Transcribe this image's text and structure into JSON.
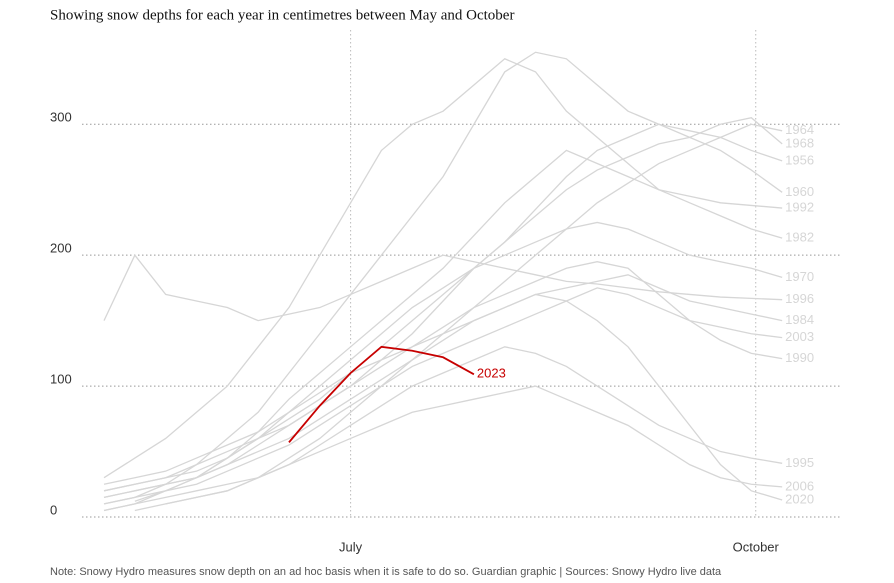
{
  "chart_data": {
    "type": "line",
    "subtitle": "Showing snow depths for each year in centimetres between May and October",
    "note": "Note: Snowy Hydro measures snow depth on an ad hoc basis when it is safe to do so. Guardian graphic | Sources: Snowy Hydro live data",
    "x": [
      126,
      133,
      140,
      147,
      154,
      161,
      168,
      175,
      182,
      189,
      196,
      203,
      210,
      217,
      224,
      231,
      238,
      245,
      252,
      259,
      266,
      273,
      280,
      287
    ],
    "xlim": [
      121,
      292
    ],
    "xticks": [
      {
        "value": 182,
        "label": "July"
      },
      {
        "value": 274,
        "label": "October"
      }
    ],
    "ylim": [
      0,
      372
    ],
    "yticks": [
      0,
      100,
      200,
      300
    ],
    "grid": true,
    "series": [
      {
        "name": "1964",
        "color": "#d6d6d6",
        "values": [
          null,
          null,
          10,
          15,
          20,
          30,
          45,
          60,
          80,
          100,
          120,
          140,
          160,
          180,
          200,
          220,
          240,
          255,
          270,
          280,
          290,
          300,
          295,
          null
        ]
      },
      {
        "name": "1968",
        "color": "#d6d6d6",
        "values": [
          15,
          20,
          25,
          30,
          40,
          55,
          70,
          85,
          100,
          120,
          140,
          165,
          190,
          210,
          230,
          250,
          265,
          275,
          285,
          290,
          300,
          305,
          285,
          null
        ]
      },
      {
        "name": "1956",
        "color": "#d6d6d6",
        "values": [
          20,
          25,
          30,
          35,
          45,
          60,
          75,
          90,
          110,
          130,
          150,
          170,
          190,
          210,
          235,
          260,
          280,
          290,
          300,
          295,
          290,
          280,
          272,
          null
        ]
      },
      {
        "name": "1960",
        "color": "#d6d6d6",
        "values": [
          10,
          15,
          25,
          40,
          60,
          80,
          110,
          140,
          170,
          200,
          230,
          260,
          300,
          340,
          355,
          350,
          330,
          310,
          300,
          290,
          280,
          265,
          248,
          null
        ]
      },
      {
        "name": "1992",
        "color": "#d6d6d6",
        "values": [
          null,
          12,
          20,
          30,
          45,
          65,
          90,
          110,
          130,
          150,
          170,
          190,
          215,
          240,
          260,
          280,
          270,
          260,
          250,
          245,
          240,
          238,
          236,
          null
        ]
      },
      {
        "name": "1982",
        "color": "#d6d6d6",
        "values": [
          30,
          45,
          60,
          80,
          100,
          130,
          160,
          200,
          240,
          280,
          300,
          310,
          330,
          350,
          340,
          310,
          290,
          270,
          250,
          240,
          230,
          220,
          213,
          null
        ]
      },
      {
        "name": "1970",
        "color": "#d6d6d6",
        "values": [
          5,
          10,
          20,
          30,
          45,
          60,
          80,
          100,
          120,
          140,
          160,
          175,
          190,
          200,
          210,
          220,
          225,
          220,
          210,
          200,
          195,
          190,
          183,
          null
        ]
      },
      {
        "name": "1996",
        "color": "#d6d6d6",
        "values": [
          150,
          200,
          170,
          165,
          160,
          150,
          155,
          160,
          170,
          180,
          190,
          200,
          195,
          190,
          185,
          180,
          178,
          175,
          172,
          170,
          168,
          167,
          166,
          null
        ]
      },
      {
        "name": "1984",
        "color": "#d6d6d6",
        "values": [
          20,
          25,
          30,
          40,
          50,
          60,
          70,
          85,
          100,
          115,
          130,
          140,
          150,
          160,
          170,
          175,
          180,
          185,
          175,
          165,
          160,
          155,
          150,
          null
        ]
      },
      {
        "name": "2003",
        "color": "#d6d6d6",
        "values": [
          10,
          15,
          20,
          25,
          35,
          45,
          55,
          70,
          85,
          100,
          115,
          125,
          135,
          145,
          155,
          165,
          175,
          170,
          160,
          150,
          145,
          140,
          137,
          null
        ]
      },
      {
        "name": "1990",
        "color": "#d6d6d6",
        "values": [
          25,
          30,
          35,
          45,
          55,
          65,
          80,
          95,
          110,
          120,
          130,
          145,
          160,
          170,
          180,
          190,
          195,
          190,
          170,
          150,
          135,
          125,
          121,
          null
        ]
      },
      {
        "name": "1995",
        "color": "#d6d6d6",
        "values": [
          5,
          10,
          15,
          20,
          25,
          30,
          40,
          55,
          70,
          85,
          100,
          110,
          120,
          130,
          125,
          115,
          100,
          85,
          70,
          60,
          50,
          45,
          41,
          null
        ]
      },
      {
        "name": "2006",
        "color": "#d6d6d6",
        "values": [
          null,
          5,
          10,
          15,
          20,
          30,
          40,
          50,
          60,
          70,
          80,
          85,
          90,
          95,
          100,
          90,
          80,
          70,
          55,
          40,
          30,
          25,
          23,
          null
        ]
      },
      {
        "name": "2020",
        "color": "#d6d6d6",
        "values": [
          15,
          20,
          25,
          30,
          40,
          50,
          60,
          75,
          90,
          105,
          120,
          135,
          150,
          160,
          170,
          165,
          150,
          130,
          100,
          70,
          40,
          20,
          13,
          null
        ]
      },
      {
        "name": "2023",
        "color": "#c70000",
        "values": [
          null,
          null,
          null,
          null,
          null,
          null,
          57,
          85,
          110,
          130,
          127,
          122,
          109,
          null,
          null,
          null,
          null,
          null,
          null,
          null,
          null,
          null,
          null,
          null
        ]
      }
    ]
  }
}
